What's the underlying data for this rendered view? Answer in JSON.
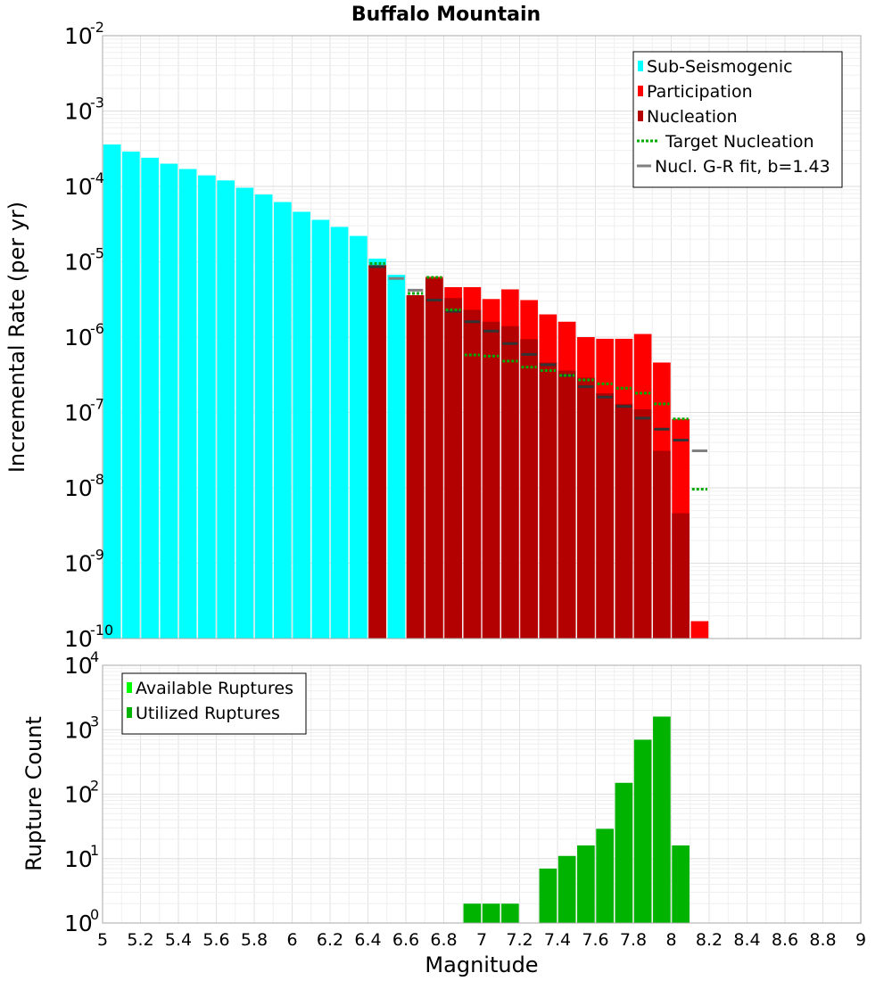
{
  "chart_data": [
    {
      "type": "bar",
      "title": "Buffalo Mountain",
      "ylabel": "Incremental Rate (per yr)",
      "xlim": [
        5,
        9
      ],
      "ylim_exp": [
        -10,
        -2
      ],
      "log_y": true,
      "grid": true,
      "legend_position": "top-right",
      "bin_width": 0.1,
      "legend": [
        {
          "label": "Sub-Seismogenic",
          "kind": "bar",
          "color": "#00ffff"
        },
        {
          "label": "Participation",
          "kind": "bar",
          "color": "#ff0000"
        },
        {
          "label": "Nucleation",
          "kind": "bar",
          "color": "#b30000"
        },
        {
          "label": "Target Nucleation",
          "kind": "dotted",
          "color": "#00aa00"
        },
        {
          "label": "Nucl. G-R fit, b=1.43",
          "kind": "line",
          "color": "#808080"
        }
      ],
      "series": [
        {
          "name": "Sub-Seismogenic",
          "color": "#00ffff",
          "x": [
            5.05,
            5.15,
            5.25,
            5.35,
            5.45,
            5.55,
            5.65,
            5.75,
            5.85,
            5.95,
            6.05,
            6.15,
            6.25,
            6.35,
            6.45,
            6.55
          ],
          "values": [
            0.00036,
            0.00029,
            0.00024,
            0.0002,
            0.00017,
            0.00014,
            0.00012,
            9.6e-05,
            7.8e-05,
            6.2e-05,
            4.6e-05,
            3.6e-05,
            2.9e-05,
            2.2e-05,
            1.1e-05,
            6.7e-06
          ]
        },
        {
          "name": "Participation",
          "color": "#ff0000",
          "x": [
            6.45,
            6.65,
            6.75,
            6.85,
            6.95,
            7.05,
            7.15,
            7.25,
            7.35,
            7.45,
            7.55,
            7.65,
            7.75,
            7.85,
            7.95,
            8.05,
            8.15
          ],
          "values": [
            9e-06,
            3.6e-06,
            6.3e-06,
            4.6e-06,
            4.6e-06,
            3.2e-06,
            4.3e-06,
            3.1e-06,
            2e-06,
            1.6e-06,
            1e-06,
            9.5e-07,
            9.5e-07,
            1.1e-06,
            4.6e-07,
            8.2e-08,
            1.7e-10
          ]
        },
        {
          "name": "Nucleation",
          "color": "#b30000",
          "x": [
            6.45,
            6.65,
            6.75,
            6.85,
            6.95,
            7.05,
            7.15,
            7.25,
            7.35,
            7.45,
            7.55,
            7.65,
            7.75,
            7.85,
            7.95,
            8.05
          ],
          "values": [
            9e-06,
            3.6e-06,
            6e-06,
            3.3e-06,
            2.3e-06,
            1.6e-06,
            1.4e-06,
            9.4e-07,
            4.6e-07,
            3.6e-07,
            2.9e-07,
            1.8e-07,
            1.3e-07,
            1.1e-07,
            3.1e-08,
            4.6e-09
          ]
        },
        {
          "name": "Target Nucleation",
          "color": "#00aa00",
          "x": [
            6.45,
            6.65,
            6.75,
            6.85,
            6.95,
            7.05,
            7.15,
            7.25,
            7.35,
            7.45,
            7.55,
            7.65,
            7.75,
            7.85,
            7.95,
            8.05,
            8.15
          ],
          "values": [
            9.5e-06,
            3.8e-06,
            6.2e-06,
            2.3e-06,
            5.8e-07,
            5.6e-07,
            4.8e-07,
            4e-07,
            3.6e-07,
            3.1e-07,
            2.7e-07,
            2.4e-07,
            2.1e-07,
            1.8e-07,
            1.3e-07,
            8.2e-08,
            9.6e-09
          ]
        },
        {
          "name": "Nucl. G-R fit, b=1.43",
          "color": "#808080",
          "x": [
            6.45,
            6.55,
            6.65,
            6.75,
            6.85,
            6.95,
            7.05,
            7.15,
            7.25,
            7.35,
            7.45,
            7.55,
            7.65,
            7.75,
            7.85,
            7.95,
            8.05,
            8.15
          ],
          "values": [
            8.6e-06,
            6e-06,
            4.2e-06,
            3.1e-06,
            2.2e-06,
            1.6e-06,
            1.2e-06,
            8.2e-07,
            5.9e-07,
            4.3e-07,
            3.1e-07,
            2.2e-07,
            1.6e-07,
            1.2e-07,
            8.4e-08,
            6e-08,
            4.3e-08,
            3.1e-08
          ]
        }
      ]
    },
    {
      "type": "bar",
      "ylabel": "Rupture Count",
      "xlabel": "Magnitude",
      "xlim": [
        5,
        9
      ],
      "ylim_exp": [
        0,
        4
      ],
      "log_y": true,
      "grid": true,
      "legend_position": "top-left",
      "bin_width": 0.1,
      "legend": [
        {
          "label": "Available Ruptures",
          "kind": "bar",
          "color": "#00ff00"
        },
        {
          "label": "Utilized Ruptures",
          "kind": "bar",
          "color": "#00b300"
        }
      ],
      "series": [
        {
          "name": "Utilized Ruptures",
          "color": "#00b300",
          "x": [
            6.65,
            6.95,
            7.05,
            7.15,
            7.25,
            7.35,
            7.45,
            7.55,
            7.65,
            7.75,
            7.85,
            7.95,
            8.05
          ],
          "values": [
            1,
            2,
            2,
            2,
            1,
            7,
            11,
            16,
            29,
            150,
            700,
            1600,
            16
          ]
        }
      ]
    }
  ],
  "x_ticks": [
    "5",
    "5.2",
    "5.4",
    "5.6",
    "5.8",
    "6",
    "6.2",
    "6.4",
    "6.6",
    "6.8",
    "7",
    "7.2",
    "7.4",
    "7.6",
    "7.8",
    "8",
    "8.2",
    "8.4",
    "8.6",
    "8.8",
    "9"
  ],
  "y_tick_base": "10"
}
